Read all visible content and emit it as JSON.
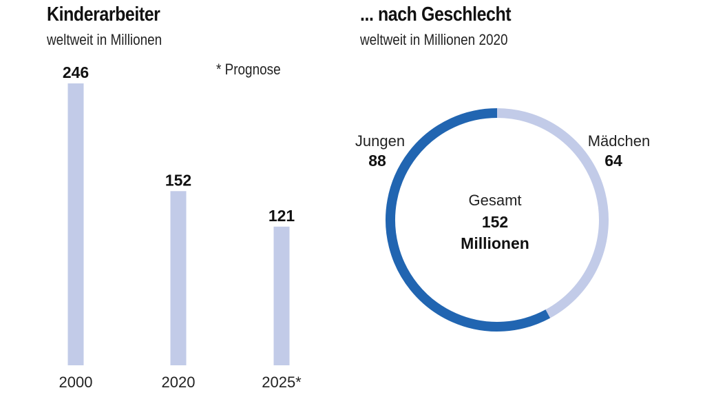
{
  "left": {
    "title": "Kinderarbeiter",
    "subtitle": "weltweit in Millionen",
    "note": "* Prognose"
  },
  "right": {
    "title": "... nach Geschlecht",
    "subtitle": "weltweit in Millionen 2020"
  },
  "colors": {
    "bar": "#c2cbe8",
    "boys": "#2165b1",
    "girls": "#c2cbe8"
  },
  "chart_data": [
    {
      "type": "bar",
      "categories": [
        "2000",
        "2020",
        "2025*"
      ],
      "values": [
        246,
        152,
        121
      ],
      "value_labels": [
        "246",
        "152",
        "121"
      ],
      "title": "Kinderarbeiter",
      "subtitle": "weltweit in Millionen",
      "ylim": [
        0,
        246
      ],
      "grid": false
    },
    {
      "type": "pie",
      "style": "donut",
      "title": "... nach Geschlecht",
      "subtitle": "weltweit in Millionen 2020",
      "slices": [
        {
          "label": "Jungen",
          "value": 88,
          "value_label": "88",
          "color": "#2165b1"
        },
        {
          "label": "Mädchen",
          "value": 64,
          "value_label": "64",
          "color": "#c2cbe8"
        }
      ],
      "center": {
        "label": "Gesamt",
        "value": "152",
        "unit": "Millionen"
      }
    }
  ]
}
